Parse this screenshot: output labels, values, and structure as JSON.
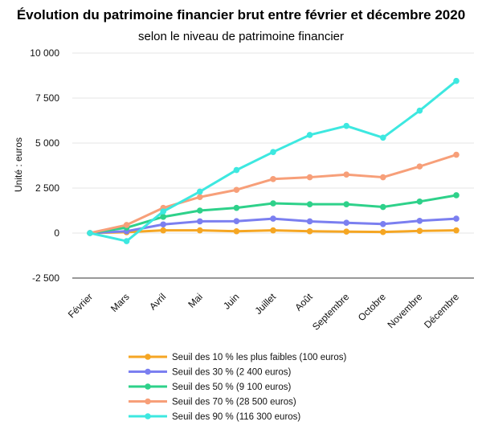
{
  "chart_data": {
    "type": "line",
    "title": "Évolution du patrimoine financier brut entre février et décembre 2020",
    "subtitle": "selon le niveau de patrimoine financier",
    "ylabel": "Unité : euros",
    "xlabel": "",
    "categories": [
      "Février",
      "Mars",
      "Avril",
      "Mai",
      "Juin",
      "Juillet",
      "Août",
      "Septembre",
      "Octobre",
      "Novembre",
      "Décembre"
    ],
    "yticks": [
      "10 000",
      "7 500",
      "5 000",
      "2 500",
      "0",
      "-2 500"
    ],
    "ytick_values": [
      10000,
      7500,
      5000,
      2500,
      0,
      -2500
    ],
    "ylim": [
      -2500,
      10000
    ],
    "grid": true,
    "legend_position": "bottom",
    "series": [
      {
        "name": "Seuil des 10 % les plus faibles (100 euros)",
        "color": "#f5a623",
        "values": [
          0,
          50,
          150,
          150,
          100,
          150,
          100,
          80,
          60,
          120,
          150
        ]
      },
      {
        "name": "Seuil des 30 % (2 400 euros)",
        "color": "#7b7ff0",
        "values": [
          0,
          100,
          480,
          650,
          660,
          800,
          650,
          570,
          500,
          680,
          800
        ]
      },
      {
        "name": "Seuil des 50 % (9 100 euros)",
        "color": "#2ed18a",
        "values": [
          0,
          300,
          900,
          1250,
          1400,
          1650,
          1600,
          1600,
          1450,
          1750,
          2100
        ]
      },
      {
        "name": "Seuil des 70 % (28 500 euros)",
        "color": "#f79f79",
        "values": [
          0,
          450,
          1400,
          2000,
          2400,
          3000,
          3100,
          3250,
          3100,
          3700,
          4350
        ]
      },
      {
        "name": "Seuil des 90 % (116 300 euros)",
        "color": "#3de8e0",
        "values": [
          0,
          -450,
          1200,
          2300,
          3500,
          4500,
          5450,
          5950,
          5300,
          6800,
          8450
        ]
      }
    ]
  }
}
